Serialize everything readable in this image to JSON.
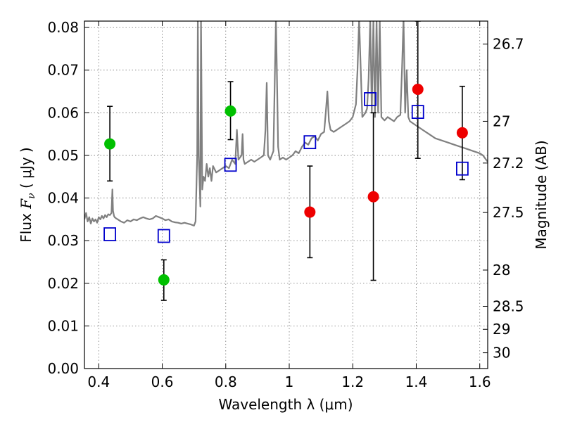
{
  "chart_data": {
    "type": "scatter",
    "xlabel": "Wavelength  λ (μm)",
    "ylabel": "Flux  F_ν  ( μJy )",
    "ylabel_parts": {
      "pre": "Flux  ",
      "var": "F",
      "sub": "ν",
      "post": "  ( μJy )"
    },
    "y2label": "Magnitude (AB)",
    "xlim": [
      0.355,
      1.625
    ],
    "ylim": [
      0.0,
      0.0815
    ],
    "x_ticks": [
      0.4,
      0.6,
      0.8,
      1.0,
      1.2,
      1.4,
      1.6
    ],
    "x_tick_labels": [
      "0.4",
      "0.6",
      "0.8",
      "1",
      "1.2",
      "1.4",
      "1.6"
    ],
    "y_ticks": [
      0.0,
      0.01,
      0.02,
      0.03,
      0.04,
      0.05,
      0.06,
      0.07,
      0.08
    ],
    "y_tick_labels": [
      "0.00",
      "0.01",
      "0.02",
      "0.03",
      "0.04",
      "0.05",
      "0.06",
      "0.07",
      "0.08"
    ],
    "y2_ticks": [
      {
        "label": "26.7",
        "flux": 0.0761
      },
      {
        "label": "27",
        "flux": 0.058
      },
      {
        "label": "27.2",
        "flux": 0.0482
      },
      {
        "label": "27.5",
        "flux": 0.0366
      },
      {
        "label": "28",
        "flux": 0.0231
      },
      {
        "label": "28.5",
        "flux": 0.0146
      },
      {
        "label": "29",
        "flux": 0.0092
      },
      {
        "label": "30",
        "flux": 0.0037
      }
    ],
    "grid": true,
    "colors": {
      "spectrum": "#808080",
      "green": "#00c000",
      "red": "#ee0000",
      "model": "#0000cc",
      "errorbar": "#000000"
    },
    "series": [
      {
        "kind": "spectrum",
        "x": [
          0.355,
          0.36,
          0.365,
          0.37,
          0.375,
          0.38,
          0.385,
          0.39,
          0.395,
          0.4,
          0.405,
          0.41,
          0.415,
          0.42,
          0.425,
          0.43,
          0.435,
          0.44,
          0.443,
          0.445,
          0.448,
          0.45,
          0.455,
          0.46,
          0.47,
          0.48,
          0.49,
          0.5,
          0.51,
          0.52,
          0.53,
          0.54,
          0.55,
          0.56,
          0.57,
          0.58,
          0.59,
          0.6,
          0.61,
          0.62,
          0.63,
          0.64,
          0.65,
          0.66,
          0.67,
          0.68,
          0.69,
          0.7,
          0.705,
          0.71,
          0.712,
          0.715,
          0.72,
          0.722,
          0.726,
          0.73,
          0.735,
          0.74,
          0.745,
          0.75,
          0.755,
          0.76,
          0.77,
          0.78,
          0.79,
          0.8,
          0.81,
          0.82,
          0.83,
          0.835,
          0.84,
          0.85,
          0.853,
          0.856,
          0.86,
          0.87,
          0.88,
          0.89,
          0.9,
          0.91,
          0.92,
          0.925,
          0.929,
          0.933,
          0.94,
          0.95,
          0.955,
          0.958,
          0.961,
          0.965,
          0.97,
          0.98,
          0.99,
          1.0,
          1.01,
          1.02,
          1.03,
          1.04,
          1.05,
          1.06,
          1.07,
          1.08,
          1.09,
          1.1,
          1.11,
          1.115,
          1.12,
          1.125,
          1.13,
          1.14,
          1.15,
          1.16,
          1.17,
          1.18,
          1.19,
          1.2,
          1.21,
          1.215,
          1.22,
          1.23,
          1.24,
          1.245,
          1.25,
          1.255,
          1.26,
          1.265,
          1.27,
          1.275,
          1.28,
          1.285,
          1.29,
          1.3,
          1.31,
          1.32,
          1.33,
          1.34,
          1.35,
          1.355,
          1.36,
          1.365,
          1.37,
          1.375,
          1.38,
          1.39,
          1.4,
          1.42,
          1.44,
          1.46,
          1.48,
          1.5,
          1.52,
          1.54,
          1.56,
          1.58,
          1.6,
          1.61,
          1.62,
          1.625
        ],
        "y": [
          0.035,
          0.0365,
          0.0345,
          0.0355,
          0.034,
          0.0352,
          0.0345,
          0.035,
          0.0342,
          0.0355,
          0.035,
          0.0358,
          0.0352,
          0.036,
          0.0355,
          0.0362,
          0.036,
          0.0365,
          0.042,
          0.037,
          0.0358,
          0.0355,
          0.0352,
          0.035,
          0.0345,
          0.0342,
          0.0348,
          0.0345,
          0.035,
          0.0348,
          0.0352,
          0.0355,
          0.0352,
          0.035,
          0.0352,
          0.0358,
          0.0355,
          0.0352,
          0.0348,
          0.035,
          0.0345,
          0.0343,
          0.0342,
          0.034,
          0.0342,
          0.034,
          0.0338,
          0.0335,
          0.0345,
          0.05,
          0.082,
          0.05,
          0.038,
          0.082,
          0.042,
          0.045,
          0.044,
          0.048,
          0.045,
          0.047,
          0.044,
          0.0475,
          0.046,
          0.0465,
          0.047,
          0.0475,
          0.047,
          0.049,
          0.048,
          0.056,
          0.049,
          0.05,
          0.055,
          0.049,
          0.048,
          0.0485,
          0.049,
          0.0485,
          0.049,
          0.0495,
          0.05,
          0.056,
          0.067,
          0.05,
          0.049,
          0.051,
          0.07,
          0.082,
          0.07,
          0.052,
          0.049,
          0.0495,
          0.049,
          0.0495,
          0.05,
          0.051,
          0.0505,
          0.052,
          0.053,
          0.0525,
          0.054,
          0.0545,
          0.0535,
          0.055,
          0.0555,
          0.06,
          0.065,
          0.058,
          0.056,
          0.0555,
          0.056,
          0.0565,
          0.057,
          0.0575,
          0.058,
          0.059,
          0.062,
          0.07,
          0.082,
          0.059,
          0.06,
          0.061,
          0.068,
          0.082,
          0.06,
          0.082,
          0.059,
          0.082,
          0.06,
          0.082,
          0.059,
          0.0582,
          0.059,
          0.0585,
          0.058,
          0.059,
          0.0595,
          0.07,
          0.082,
          0.06,
          0.07,
          0.059,
          0.058,
          0.0575,
          0.057,
          0.056,
          0.055,
          0.054,
          0.0535,
          0.053,
          0.0525,
          0.052,
          0.0515,
          0.051,
          0.0505,
          0.05,
          0.049,
          0.0485
        ]
      },
      {
        "kind": "points",
        "name": "",
        "color_key": "green",
        "points": [
          {
            "x": 0.435,
            "y": 0.0527,
            "lo": 0.044,
            "hi": 0.0615
          },
          {
            "x": 0.605,
            "y": 0.0208,
            "lo": 0.016,
            "hi": 0.0255
          },
          {
            "x": 0.815,
            "y": 0.0604,
            "lo": 0.0537,
            "hi": 0.0673
          }
        ]
      },
      {
        "kind": "points",
        "name": "",
        "color_key": "red",
        "points": [
          {
            "x": 1.065,
            "y": 0.0367,
            "lo": 0.026,
            "hi": 0.0475
          },
          {
            "x": 1.265,
            "y": 0.0403,
            "lo": 0.0207,
            "hi": 0.06
          },
          {
            "x": 1.405,
            "y": 0.0655,
            "lo": 0.0493,
            "hi": 0.0815
          },
          {
            "x": 1.545,
            "y": 0.0553,
            "lo": 0.0443,
            "hi": 0.0662
          }
        ]
      },
      {
        "kind": "model",
        "name": "",
        "color_key": "model",
        "points": [
          {
            "x": 0.435,
            "y": 0.0315
          },
          {
            "x": 0.605,
            "y": 0.0311
          },
          {
            "x": 0.815,
            "y": 0.0478
          },
          {
            "x": 1.065,
            "y": 0.0531
          },
          {
            "x": 1.255,
            "y": 0.0632
          },
          {
            "x": 1.405,
            "y": 0.0602
          },
          {
            "x": 1.545,
            "y": 0.0469
          }
        ]
      }
    ]
  }
}
